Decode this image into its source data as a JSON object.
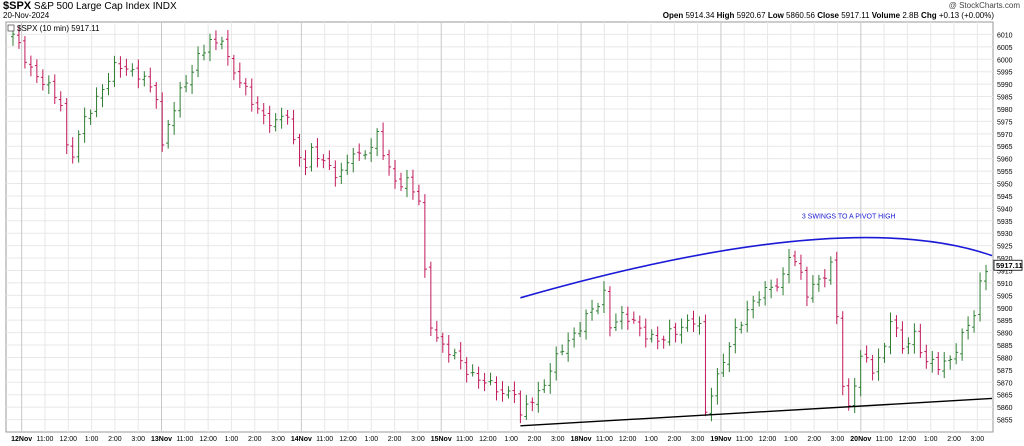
{
  "header": {
    "symbol": "$SPX",
    "name": "S&P 500 Large Cap Index",
    "exchange": "INDX",
    "date": "20-Nov-2024",
    "watermark": "@ StockCharts.com",
    "ohlc": {
      "open_label": "Open",
      "open": "5914.34",
      "high_label": "High",
      "high": "5920.67",
      "low_label": "Low",
      "low": "5860.56",
      "close_label": "Close",
      "close": "5917.11",
      "volume_label": "Volume",
      "volume": "2.8B",
      "chg_label": "Chg",
      "chg": "+0.13 (+0.00%)"
    }
  },
  "legend": {
    "text": "$SPX (10 min) 5917.11"
  },
  "colors": {
    "up": "#2e7d32",
    "down": "#c2185b",
    "arc": "#1a1ad6",
    "trend": "#000000",
    "grid": "#e8e8e8"
  },
  "chart_data": {
    "type": "ohlc",
    "interval": "10 min",
    "ylim": [
      5850,
      6015
    ],
    "y_ticks": [
      5855,
      5860,
      5865,
      5870,
      5875,
      5880,
      5885,
      5890,
      5895,
      5900,
      5905,
      5910,
      5915,
      5920,
      5925,
      5930,
      5935,
      5940,
      5945,
      5950,
      5955,
      5960,
      5965,
      5970,
      5975,
      5980,
      5985,
      5990,
      5995,
      6000,
      6005,
      6010
    ],
    "last_value_label": "5917.11",
    "x_ticks": [
      "12Nov",
      "11:00",
      "12:00",
      "1:00",
      "2:00",
      "3:00",
      "13Nov",
      "11:00",
      "12:00",
      "1:00",
      "2:00",
      "3:00",
      "14Nov",
      "11:00",
      "12:00",
      "1:00",
      "2:00",
      "3:00",
      "15Nov",
      "11:00",
      "12:00",
      "1:00",
      "2:00",
      "3:00",
      "18Nov",
      "11:00",
      "12:00",
      "1:00",
      "2:00",
      "3:00",
      "19Nov",
      "11:00",
      "12:00",
      "1:00",
      "2:00",
      "3:00",
      "20Nov",
      "11:00",
      "12:00",
      "1:00",
      "2:00",
      "3:00"
    ],
    "path": [
      [
        0,
        6009
      ],
      [
        1,
        6005
      ],
      [
        3,
        5997
      ],
      [
        4,
        5993
      ],
      [
        6,
        5988
      ],
      [
        7,
        5985
      ],
      [
        8,
        5983
      ],
      [
        9,
        5965
      ],
      [
        10,
        5962
      ],
      [
        12,
        5975
      ],
      [
        14,
        5985
      ],
      [
        16,
        5992
      ],
      [
        17,
        5996
      ],
      [
        19,
        5997
      ],
      [
        21,
        5994
      ],
      [
        22,
        5992
      ],
      [
        23,
        5987
      ],
      [
        24,
        5985
      ],
      [
        25,
        5965
      ],
      [
        26,
        5975
      ],
      [
        28,
        5986
      ],
      [
        30,
        5995
      ],
      [
        31,
        6002
      ],
      [
        32,
        6005
      ],
      [
        33,
        6007
      ],
      [
        34,
        6005
      ],
      [
        35,
        6008
      ],
      [
        36,
        6000
      ],
      [
        38,
        5992
      ],
      [
        40,
        5982
      ],
      [
        42,
        5977
      ],
      [
        44,
        5975
      ],
      [
        46,
        5977
      ],
      [
        47,
        5966
      ],
      [
        49,
        5958
      ],
      [
        50,
        5963
      ],
      [
        52,
        5958
      ],
      [
        54,
        5955
      ],
      [
        55,
        5955
      ],
      [
        56,
        5958
      ],
      [
        57,
        5962
      ],
      [
        58,
        5960
      ],
      [
        60,
        5966
      ],
      [
        61,
        5970
      ],
      [
        62,
        5962
      ],
      [
        63,
        5955
      ],
      [
        64,
        5950
      ],
      [
        66,
        5952
      ],
      [
        67,
        5947
      ],
      [
        68,
        5943
      ],
      [
        69,
        5913
      ],
      [
        70,
        5893
      ],
      [
        72,
        5885
      ],
      [
        74,
        5880
      ],
      [
        76,
        5875
      ],
      [
        78,
        5872
      ],
      [
        80,
        5868
      ],
      [
        82,
        5866
      ],
      [
        84,
        5867
      ],
      [
        85,
        5855
      ],
      [
        86,
        5860
      ],
      [
        88,
        5866
      ],
      [
        90,
        5875
      ],
      [
        92,
        5883
      ],
      [
        94,
        5890
      ],
      [
        96,
        5896
      ],
      [
        98,
        5901
      ],
      [
        99,
        5906
      ],
      [
        100,
        5894
      ],
      [
        102,
        5896
      ],
      [
        104,
        5894
      ],
      [
        106,
        5890
      ],
      [
        108,
        5886
      ],
      [
        109,
        5887
      ],
      [
        110,
        5890
      ],
      [
        112,
        5893
      ],
      [
        114,
        5894
      ],
      [
        115,
        5892
      ],
      [
        116,
        5858
      ],
      [
        117,
        5867
      ],
      [
        119,
        5878
      ],
      [
        121,
        5890
      ],
      [
        123,
        5900
      ],
      [
        125,
        5904
      ],
      [
        127,
        5908
      ],
      [
        129,
        5913
      ],
      [
        130,
        5921
      ],
      [
        131,
        5918
      ],
      [
        132,
        5912
      ],
      [
        133,
        5906
      ],
      [
        134,
        5910
      ],
      [
        136,
        5913
      ],
      [
        137,
        5916
      ],
      [
        138,
        5896
      ],
      [
        139,
        5870
      ],
      [
        140,
        5860
      ],
      [
        142,
        5880
      ],
      [
        144,
        5875
      ],
      [
        146,
        5885
      ],
      [
        147,
        5896
      ],
      [
        149,
        5883
      ],
      [
        151,
        5890
      ],
      [
        153,
        5878
      ],
      [
        155,
        5876
      ],
      [
        157,
        5880
      ],
      [
        159,
        5888
      ],
      [
        161,
        5897
      ],
      [
        162,
        5910
      ],
      [
        163,
        5917
      ]
    ],
    "total_bars": 164,
    "arc": {
      "x": [
        85,
        132,
        164
      ],
      "y": [
        5904,
        5927,
        5921
      ]
    },
    "support_line": {
      "x": [
        85,
        164
      ],
      "y": [
        5852.5,
        5863.5
      ]
    },
    "annotation": {
      "text": "3 SWINGS TO A PIVOT HIGH",
      "x": 140,
      "y": 5936
    }
  }
}
